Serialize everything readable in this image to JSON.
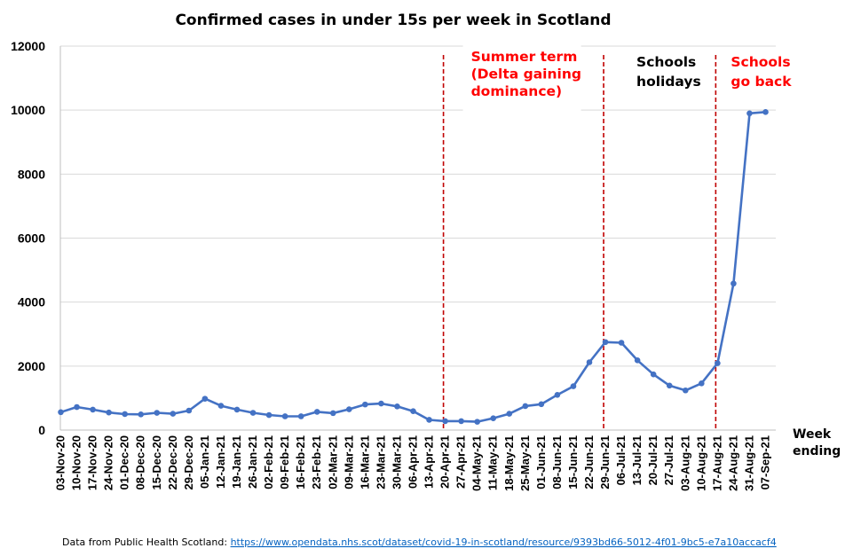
{
  "chart_data": {
    "type": "line",
    "title": "Confirmed cases in under 15s per week in Scotland",
    "xlabel": "Week ending",
    "ylabel": "",
    "ylim": [
      0,
      12000
    ],
    "yticks": [
      0,
      2000,
      4000,
      6000,
      8000,
      10000,
      12000
    ],
    "grid": "horizontal",
    "legend": "none",
    "categories": [
      "03-Nov-20",
      "10-Nov-20",
      "17-Nov-20",
      "24-Nov-20",
      "01-Dec-20",
      "08-Dec-20",
      "15-Dec-20",
      "22-Dec-20",
      "29-Dec-20",
      "05-Jan-21",
      "12-Jan-21",
      "19-Jan-21",
      "26-Jan-21",
      "02-Feb-21",
      "09-Feb-21",
      "16-Feb-21",
      "23-Feb-21",
      "02-Mar-21",
      "09-Mar-21",
      "16-Mar-21",
      "23-Mar-21",
      "30-Mar-21",
      "06-Apr-21",
      "13-Apr-21",
      "20-Apr-21",
      "27-Apr-21",
      "04-May-21",
      "11-May-21",
      "18-May-21",
      "25-May-21",
      "01-Jun-21",
      "08-Jun-21",
      "15-Jun-21",
      "22-Jun-21",
      "29-Jun-21",
      "06-Jul-21",
      "13-Jul-21",
      "20-Jul-21",
      "27-Jul-21",
      "03-Aug-21",
      "10-Aug-21",
      "17-Aug-21",
      "24-Aug-21",
      "31-Aug-21",
      "07-Sep-21"
    ],
    "series": [
      {
        "values": [
          560,
          720,
          640,
          550,
          500,
          490,
          540,
          510,
          610,
          980,
          760,
          640,
          540,
          470,
          430,
          430,
          570,
          530,
          650,
          800,
          830,
          740,
          590,
          320,
          280,
          280,
          260,
          370,
          510,
          750,
          810,
          1100,
          1370,
          2120,
          2750,
          2730,
          2180,
          1740,
          1390,
          1240,
          1460,
          2090,
          4580,
          9900,
          9940
        ],
        "color": "#4472c4"
      }
    ],
    "markers": [
      {
        "after_category": "20-Apr-21"
      },
      {
        "after_category": "29-Jun-21"
      },
      {
        "after_category": "17-Aug-21"
      }
    ],
    "marker_color": "#c00000",
    "annotations": [
      {
        "lines": [
          "Summer term",
          "(Delta gaining",
          "dominance)"
        ],
        "color": "#ff0000"
      },
      {
        "lines": [
          "Schools",
          "holidays"
        ],
        "color": "#000000"
      },
      {
        "lines": [
          "Schools",
          "go back"
        ],
        "color": "#ff0000"
      }
    ]
  },
  "footer": {
    "source_prefix": "Data from Public Health Scotland: ",
    "source_url": "https://www.opendata.nhs.scot/dataset/covid-19-in-scotland/resource/9393bd66-5012-4f01-9bc5-e7a10accacf4"
  }
}
